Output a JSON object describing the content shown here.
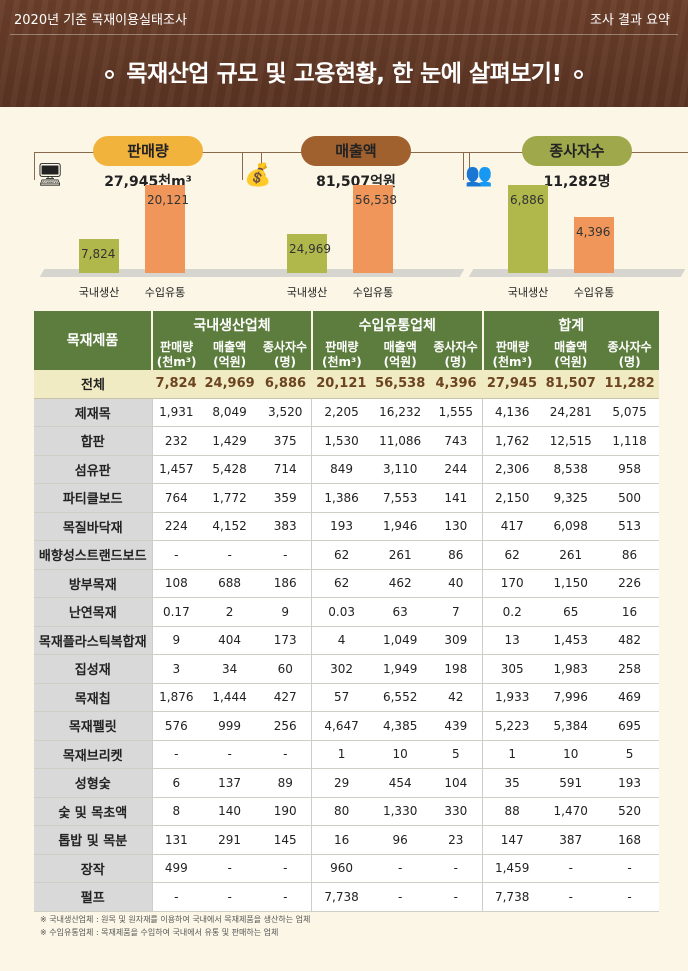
{
  "header": {
    "left": "2020년 기준 목재이용실태조사",
    "right": "조사 결과 요약",
    "title": "목재산업 규모 및 고용현황, 한 눈에 살펴보기!"
  },
  "cards": [
    {
      "label": "판매량",
      "total": "27,945천m³",
      "icon": "factory-icon",
      "color": "#f2b33d",
      "bars": [
        {
          "label": "국내생산",
          "value": "7,824",
          "num": 7824,
          "color": "#b0b84c"
        },
        {
          "label": "수입유통",
          "value": "20,121",
          "num": 20121,
          "color": "#f0965a"
        }
      ]
    },
    {
      "label": "매출액",
      "total": "81,507억원",
      "icon": "money-icon",
      "color": "#a0612f",
      "bars": [
        {
          "label": "국내생산",
          "value": "24,969",
          "num": 24969,
          "color": "#b0b84c"
        },
        {
          "label": "수입유통",
          "value": "56,538",
          "num": 56538,
          "color": "#f0965a"
        }
      ]
    },
    {
      "label": "종사자수",
      "total": "11,282명",
      "icon": "people-icon",
      "color": "#a0a84c",
      "bars": [
        {
          "label": "국내생산",
          "value": "6,886",
          "num": 6886,
          "color": "#b0b84c"
        },
        {
          "label": "수입유통",
          "value": "4,396",
          "num": 4396,
          "color": "#f0965a"
        }
      ]
    }
  ],
  "table": {
    "corner": "목재제품",
    "groups": [
      "국내생산업체",
      "수입유통업체",
      "합계"
    ],
    "sub": [
      "판매량\n(천m³)",
      "매출액\n(억원)",
      "종사자수\n(명)"
    ],
    "total": {
      "label": "전체",
      "values": [
        "7,824",
        "24,969",
        "6,886",
        "20,121",
        "56,538",
        "4,396",
        "27,945",
        "81,507",
        "11,282"
      ]
    },
    "rows": [
      {
        "label": "제재목",
        "values": [
          "1,931",
          "8,049",
          "3,520",
          "2,205",
          "16,232",
          "1,555",
          "4,136",
          "24,281",
          "5,075"
        ]
      },
      {
        "label": "합판",
        "values": [
          "232",
          "1,429",
          "375",
          "1,530",
          "11,086",
          "743",
          "1,762",
          "12,515",
          "1,118"
        ]
      },
      {
        "label": "섬유판",
        "values": [
          "1,457",
          "5,428",
          "714",
          "849",
          "3,110",
          "244",
          "2,306",
          "8,538",
          "958"
        ]
      },
      {
        "label": "파티클보드",
        "values": [
          "764",
          "1,772",
          "359",
          "1,386",
          "7,553",
          "141",
          "2,150",
          "9,325",
          "500"
        ]
      },
      {
        "label": "목질바닥재",
        "values": [
          "224",
          "4,152",
          "383",
          "193",
          "1,946",
          "130",
          "417",
          "6,098",
          "513"
        ]
      },
      {
        "label": "배향성스트랜드보드",
        "values": [
          "-",
          "-",
          "-",
          "62",
          "261",
          "86",
          "62",
          "261",
          "86"
        ]
      },
      {
        "label": "방부목재",
        "values": [
          "108",
          "688",
          "186",
          "62",
          "462",
          "40",
          "170",
          "1,150",
          "226"
        ]
      },
      {
        "label": "난연목재",
        "values": [
          "0.17",
          "2",
          "9",
          "0.03",
          "63",
          "7",
          "0.2",
          "65",
          "16"
        ]
      },
      {
        "label": "목재플라스틱복합재",
        "values": [
          "9",
          "404",
          "173",
          "4",
          "1,049",
          "309",
          "13",
          "1,453",
          "482"
        ]
      },
      {
        "label": "집성재",
        "values": [
          "3",
          "34",
          "60",
          "302",
          "1,949",
          "198",
          "305",
          "1,983",
          "258"
        ]
      },
      {
        "label": "목재칩",
        "values": [
          "1,876",
          "1,444",
          "427",
          "57",
          "6,552",
          "42",
          "1,933",
          "7,996",
          "469"
        ]
      },
      {
        "label": "목재펠릿",
        "values": [
          "576",
          "999",
          "256",
          "4,647",
          "4,385",
          "439",
          "5,223",
          "5,384",
          "695"
        ]
      },
      {
        "label": "목재브리켓",
        "values": [
          "-",
          "-",
          "-",
          "1",
          "10",
          "5",
          "1",
          "10",
          "5"
        ]
      },
      {
        "label": "성형숯",
        "values": [
          "6",
          "137",
          "89",
          "29",
          "454",
          "104",
          "35",
          "591",
          "193"
        ]
      },
      {
        "label": "숯 및 목초액",
        "values": [
          "8",
          "140",
          "190",
          "80",
          "1,330",
          "330",
          "88",
          "1,470",
          "520"
        ]
      },
      {
        "label": "톱밥 및 목분",
        "values": [
          "131",
          "291",
          "145",
          "16",
          "96",
          "23",
          "147",
          "387",
          "168"
        ]
      },
      {
        "label": "장작",
        "values": [
          "499",
          "-",
          "-",
          "960",
          "-",
          "-",
          "1,459",
          "-",
          "-"
        ]
      },
      {
        "label": "펄프",
        "values": [
          "-",
          "-",
          "-",
          "7,738",
          "-",
          "-",
          "7,738",
          "-",
          "-"
        ]
      }
    ]
  },
  "notes": [
    "※ 국내생산업체 : 원목 및 원자재를 이용하여 국내에서 목재제품을 생산하는 업체",
    "※ 수입유통업체 : 목재제품을 수입하여 국내에서 유통 및 판매하는 업체"
  ]
}
